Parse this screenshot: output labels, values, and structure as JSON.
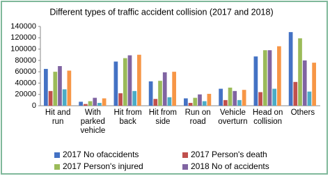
{
  "chart_data": {
    "type": "bar",
    "title": "Different types of traffic accident collision (2017 and 2018)",
    "categories": [
      "Hit and run",
      "With parked vehicle",
      "Hit from back",
      "Hit from side",
      "Run on road",
      "Vehicle overturn",
      "Head on collision",
      "Others"
    ],
    "series": [
      {
        "name": "2017 No ofaccidents",
        "color": "#4472c4",
        "values": [
          65000,
          7000,
          78000,
          43000,
          13000,
          30000,
          87000,
          130000
        ]
      },
      {
        "name": "2017 Person's death",
        "color": "#c0504d",
        "values": [
          26000,
          3000,
          22000,
          12000,
          5000,
          10000,
          24000,
          42000
        ]
      },
      {
        "name": "2017 Person's injured",
        "color": "#9bbb59",
        "values": [
          60000,
          8000,
          84000,
          44000,
          14000,
          32000,
          98000,
          119000
        ]
      },
      {
        "name": "2018 No of accidents",
        "color": "#8064a2",
        "values": [
          70000,
          14000,
          89000,
          59000,
          20000,
          26000,
          98000,
          80000
        ]
      },
      {
        "color": "#4bacc6",
        "values": [
          29000,
          5000,
          26000,
          15000,
          8000,
          10000,
          30000,
          25000
        ]
      },
      {
        "color": "#f79646",
        "values": [
          62000,
          13000,
          90000,
          60000,
          21000,
          28000,
          105000,
          76000
        ]
      }
    ],
    "ylim": [
      0,
      140000
    ],
    "yticks": [
      0,
      20000,
      40000,
      60000,
      80000,
      100000,
      120000,
      140000
    ],
    "grid": false
  }
}
